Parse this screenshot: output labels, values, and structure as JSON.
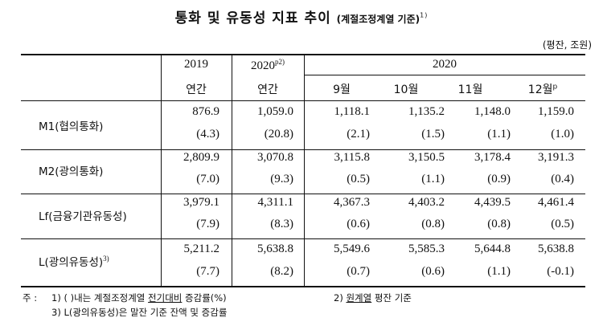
{
  "title": {
    "main": "통화 및 유동성 지표 추이",
    "sub": "(계절조정계열 기준)",
    "sup": "1)"
  },
  "unit": "(평잔, 조원)",
  "header": {
    "col2019": "2019",
    "col2020p": "2020",
    "col2020p_sup": "p2)",
    "group2020": "2020",
    "row2": [
      "연간",
      "연간",
      "9월",
      "10월",
      "11월",
      "12월"
    ],
    "dec_sup": "p"
  },
  "rows": [
    {
      "label": "M1(협의통화)",
      "label_sup": "",
      "values": [
        "876.9",
        "1,059.0",
        "1,118.1",
        "1,135.2",
        "1,148.0",
        "1,159.0"
      ],
      "rates": [
        "(4.3)",
        "(20.8)",
        "(2.1)",
        "(1.5)",
        "(1.1)",
        "(1.0)"
      ]
    },
    {
      "label": "M2(광의통화)",
      "label_sup": "",
      "values": [
        "2,809.9",
        "3,070.8",
        "3,115.8",
        "3,150.5",
        "3,178.4",
        "3,191.3"
      ],
      "rates": [
        "(7.0)",
        "(9.3)",
        "(0.5)",
        "(1.1)",
        "(0.9)",
        "(0.4)"
      ]
    },
    {
      "label": "Lf(금융기관유동성)",
      "label_sup": "",
      "values": [
        "3,979.1",
        "4,311.1",
        "4,367.3",
        "4,403.2",
        "4,439.5",
        "4,461.4"
      ],
      "rates": [
        "(7.9)",
        "(8.3)",
        "(0.6)",
        "(0.8)",
        "(0.8)",
        "(0.5)"
      ]
    },
    {
      "label": "L(광의유동성)",
      "label_sup": "3)",
      "values": [
        "5,211.2",
        "5,638.8",
        "5,549.6",
        "5,585.3",
        "5,644.8",
        "5,638.8"
      ],
      "rates": [
        "(7.7)",
        "(8.2)",
        "(0.7)",
        "(0.6)",
        "(1.1)",
        "(-0.1)"
      ]
    }
  ],
  "notes": {
    "prefix": "주 :",
    "n1_a": "1) (   )내는 계절조정계열 ",
    "n1_b": "전기대비",
    "n1_c": " 증감률(%)",
    "n2_a": "2) ",
    "n2_b": "원계열",
    "n2_c": " 평잔 기준",
    "n3": "3) L(광의유동성)은 말잔 기준 잔액 및 증감률"
  }
}
